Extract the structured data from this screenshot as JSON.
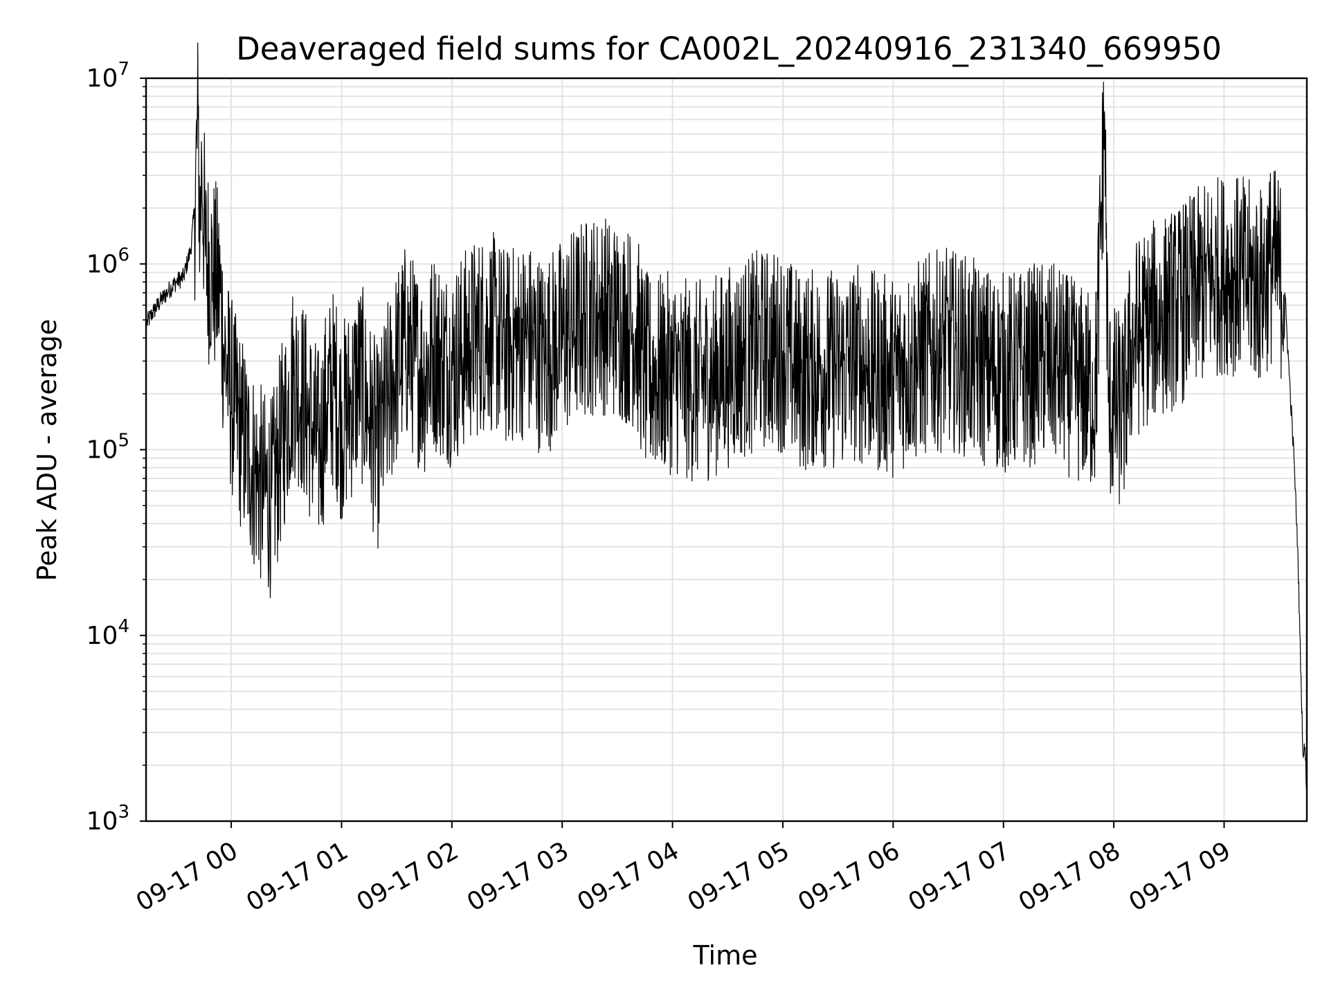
{
  "chart_data": {
    "type": "line",
    "title": "Deaveraged field sums for CA002L_20240916_231340_669950",
    "xlabel": "Time",
    "ylabel": "Peak ADU - average",
    "yscale": "log",
    "ylim": [
      1000,
      10000000
    ],
    "xlim": [
      "2024-09-16 23:13:40",
      "2024-09-17 09:45:00"
    ],
    "grid": true,
    "x_ticks": [
      "09-17 00",
      "09-17 01",
      "09-17 02",
      "09-17 03",
      "09-17 04",
      "09-17 05",
      "09-17 06",
      "09-17 07",
      "09-17 08",
      "09-17 09"
    ],
    "y_ticks": [
      {
        "base": "10",
        "exp": "3",
        "value": 1000
      },
      {
        "base": "10",
        "exp": "4",
        "value": 10000
      },
      {
        "base": "10",
        "exp": "5",
        "value": 100000
      },
      {
        "base": "10",
        "exp": "6",
        "value": 1000000
      },
      {
        "base": "10",
        "exp": "7",
        "value": 10000000
      }
    ],
    "series": [
      {
        "color": "#000000",
        "points": [
          [
            "2024-09-16 23:14",
            480000
          ],
          [
            "2024-09-16 23:18",
            560000
          ],
          [
            "2024-09-16 23:22",
            640000
          ],
          [
            "2024-09-16 23:26",
            720000
          ],
          [
            "2024-09-16 23:30",
            800000
          ],
          [
            "2024-09-16 23:34",
            850000
          ],
          [
            "2024-09-16 23:38",
            1200000
          ],
          [
            "2024-09-16 23:40",
            2000000
          ],
          [
            "2024-09-16 23:42",
            6000000
          ],
          [
            "2024-09-16 23:43",
            1400000
          ],
          [
            "2024-09-16 23:44",
            3400000
          ],
          [
            "2024-09-16 23:46",
            1100000
          ],
          [
            "2024-09-16 23:50",
            900000
          ],
          [
            "2024-09-16 23:54",
            700000
          ],
          [
            "2024-09-16 23:56",
            350000
          ],
          [
            "2024-09-16 23:58",
            250000
          ],
          [
            "2024-09-17 00:02",
            160000
          ],
          [
            "2024-09-17 00:06",
            120000
          ],
          [
            "2024-09-17 00:10",
            90000
          ],
          [
            "2024-09-17 00:14",
            70000
          ],
          [
            "2024-09-17 00:18",
            60000
          ],
          [
            "2024-09-17 00:22",
            55000
          ],
          [
            "2024-09-17 00:26",
            90000
          ],
          [
            "2024-09-17 00:30",
            150000
          ],
          [
            "2024-09-17 00:34",
            250000
          ],
          [
            "2024-09-17 00:38",
            200000
          ],
          [
            "2024-09-17 00:44",
            130000
          ],
          [
            "2024-09-17 00:48",
            100000
          ],
          [
            "2024-09-17 00:52",
            180000
          ],
          [
            "2024-09-17 00:56",
            220000
          ],
          [
            "2024-09-17 01:00",
            140000
          ],
          [
            "2024-09-17 01:05",
            180000
          ],
          [
            "2024-09-17 01:10",
            250000
          ],
          [
            "2024-09-17 01:15",
            150000
          ],
          [
            "2024-09-17 01:20",
            100000
          ],
          [
            "2024-09-17 01:25",
            180000
          ],
          [
            "2024-09-17 01:30",
            280000
          ],
          [
            "2024-09-17 01:35",
            380000
          ],
          [
            "2024-09-17 01:40",
            300000
          ],
          [
            "2024-09-17 01:45",
            250000
          ],
          [
            "2024-09-17 01:50",
            350000
          ],
          [
            "2024-09-17 01:55",
            300000
          ],
          [
            "2024-09-17 02:00",
            280000
          ],
          [
            "2024-09-17 02:10",
            380000
          ],
          [
            "2024-09-17 02:20",
            450000
          ],
          [
            "2024-09-17 02:30",
            350000
          ],
          [
            "2024-09-17 02:40",
            400000
          ],
          [
            "2024-09-17 02:50",
            320000
          ],
          [
            "2024-09-17 03:00",
            400000
          ],
          [
            "2024-09-17 03:10",
            500000
          ],
          [
            "2024-09-17 03:20",
            550000
          ],
          [
            "2024-09-17 03:30",
            500000
          ],
          [
            "2024-09-17 03:40",
            450000
          ],
          [
            "2024-09-17 03:45",
            260000
          ],
          [
            "2024-09-17 03:50",
            250000
          ],
          [
            "2024-09-17 04:00",
            260000
          ],
          [
            "2024-09-17 04:10",
            230000
          ],
          [
            "2024-09-17 04:20",
            240000
          ],
          [
            "2024-09-17 04:30",
            280000
          ],
          [
            "2024-09-17 04:40",
            320000
          ],
          [
            "2024-09-17 04:50",
            350000
          ],
          [
            "2024-09-17 05:00",
            340000
          ],
          [
            "2024-09-17 05:10",
            260000
          ],
          [
            "2024-09-17 05:20",
            280000
          ],
          [
            "2024-09-17 05:30",
            270000
          ],
          [
            "2024-09-17 05:40",
            300000
          ],
          [
            "2024-09-17 05:50",
            260000
          ],
          [
            "2024-09-17 06:00",
            250000
          ],
          [
            "2024-09-17 06:10",
            290000
          ],
          [
            "2024-09-17 06:20",
            330000
          ],
          [
            "2024-09-17 06:30",
            350000
          ],
          [
            "2024-09-17 06:40",
            320000
          ],
          [
            "2024-09-17 06:50",
            280000
          ],
          [
            "2024-09-17 07:00",
            260000
          ],
          [
            "2024-09-17 07:10",
            270000
          ],
          [
            "2024-09-17 07:20",
            300000
          ],
          [
            "2024-09-17 07:30",
            280000
          ],
          [
            "2024-09-17 07:40",
            230000
          ],
          [
            "2024-09-17 07:50",
            200000
          ],
          [
            "2024-09-17 07:55",
            6600000
          ],
          [
            "2024-09-17 07:57",
            180000
          ],
          [
            "2024-09-17 08:05",
            160000
          ],
          [
            "2024-09-17 08:10",
            380000
          ],
          [
            "2024-09-17 08:20",
            480000
          ],
          [
            "2024-09-17 08:30",
            550000
          ],
          [
            "2024-09-17 08:40",
            650000
          ],
          [
            "2024-09-17 08:50",
            800000
          ],
          [
            "2024-09-17 09:00",
            900000
          ],
          [
            "2024-09-17 09:10",
            850000
          ],
          [
            "2024-09-17 09:20",
            750000
          ],
          [
            "2024-09-17 09:25",
            1000000
          ],
          [
            "2024-09-17 09:30",
            900000
          ],
          [
            "2024-09-17 09:33",
            700000
          ],
          [
            "2024-09-17 09:36",
            200000
          ],
          [
            "2024-09-17 09:38",
            90000
          ],
          [
            "2024-09-17 09:40",
            30000
          ],
          [
            "2024-09-17 09:42",
            5000
          ],
          [
            "2024-09-17 09:43",
            2200
          ],
          [
            "2024-09-17 09:44",
            2500
          ],
          [
            "2024-09-17 09:45",
            1400
          ]
        ]
      }
    ]
  }
}
